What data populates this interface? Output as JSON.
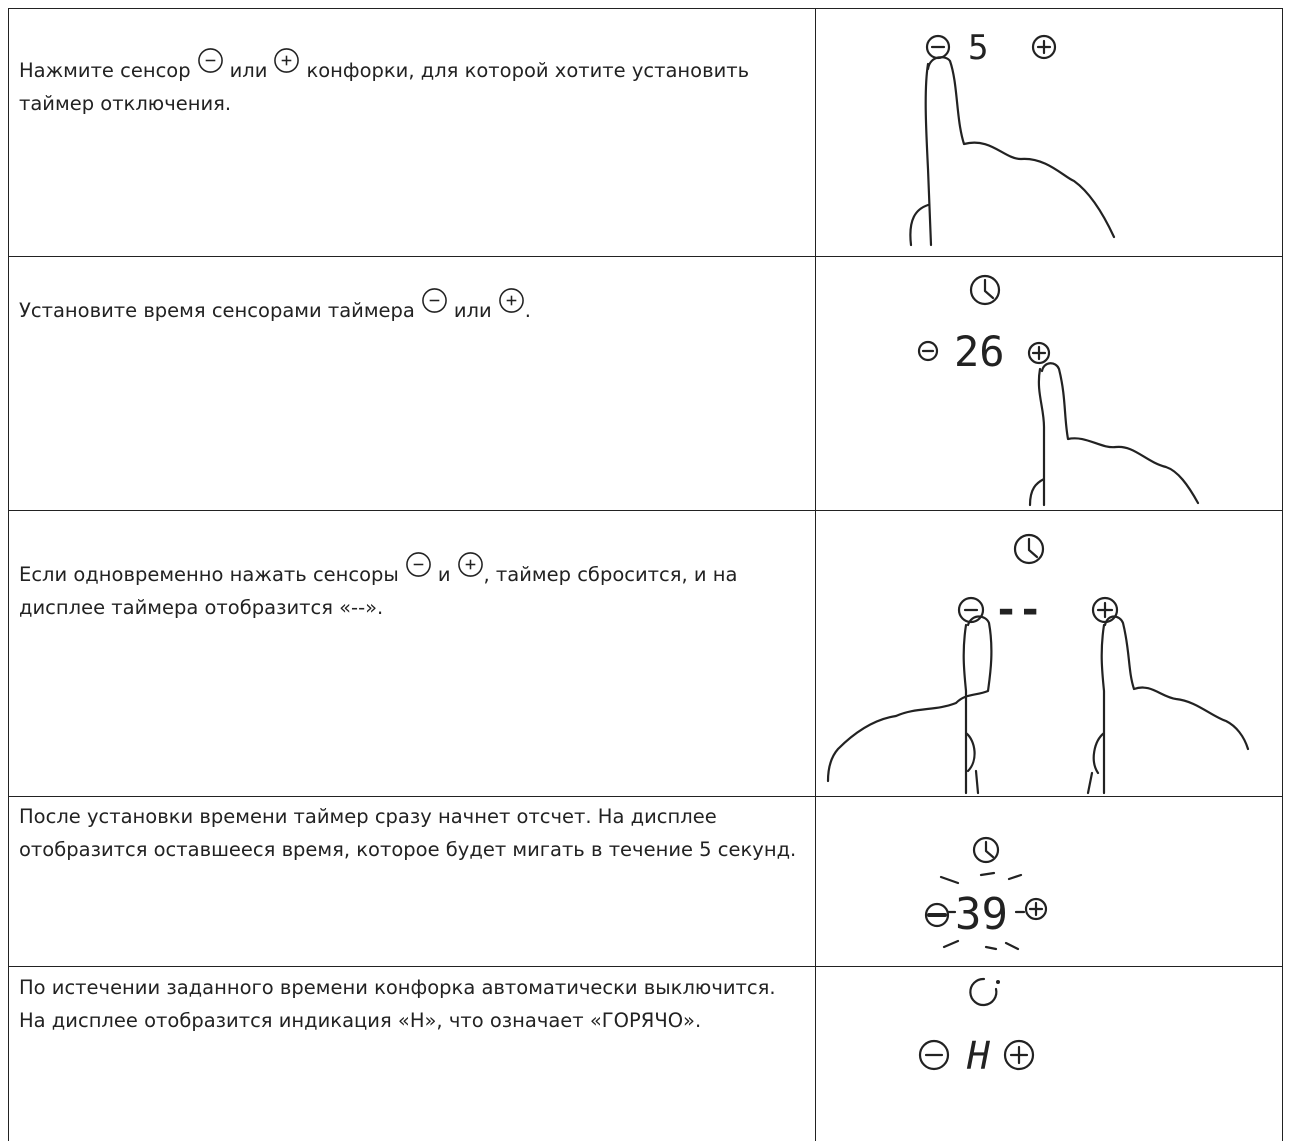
{
  "table": {
    "rows": [
      {
        "text": [
          "Нажмите сенсор",
          "или",
          "конфорки, для которой хотите установить таймер отключения."
        ],
        "display": "5"
      },
      {
        "text": [
          "Установите время сенсорами таймера",
          "или",
          "."
        ],
        "display": "26"
      },
      {
        "text": [
          "Если одновременно нажать сенсоры",
          "и",
          ", таймер сбросится, и на дисплее таймера отобразится «--»."
        ],
        "display": "--"
      },
      {
        "text": [
          "После установки времени таймер сразу начнет отсчет. На дисплее отобразится оставшееся время, которое будет мигать в течение 5 секунд."
        ],
        "display": "39"
      },
      {
        "text": [
          "По истечении заданного времени конфорка автоматически выключится. На дисплее отобразится индикация «Н», что означает «ГОРЯЧО»."
        ],
        "display": "H"
      }
    ]
  }
}
